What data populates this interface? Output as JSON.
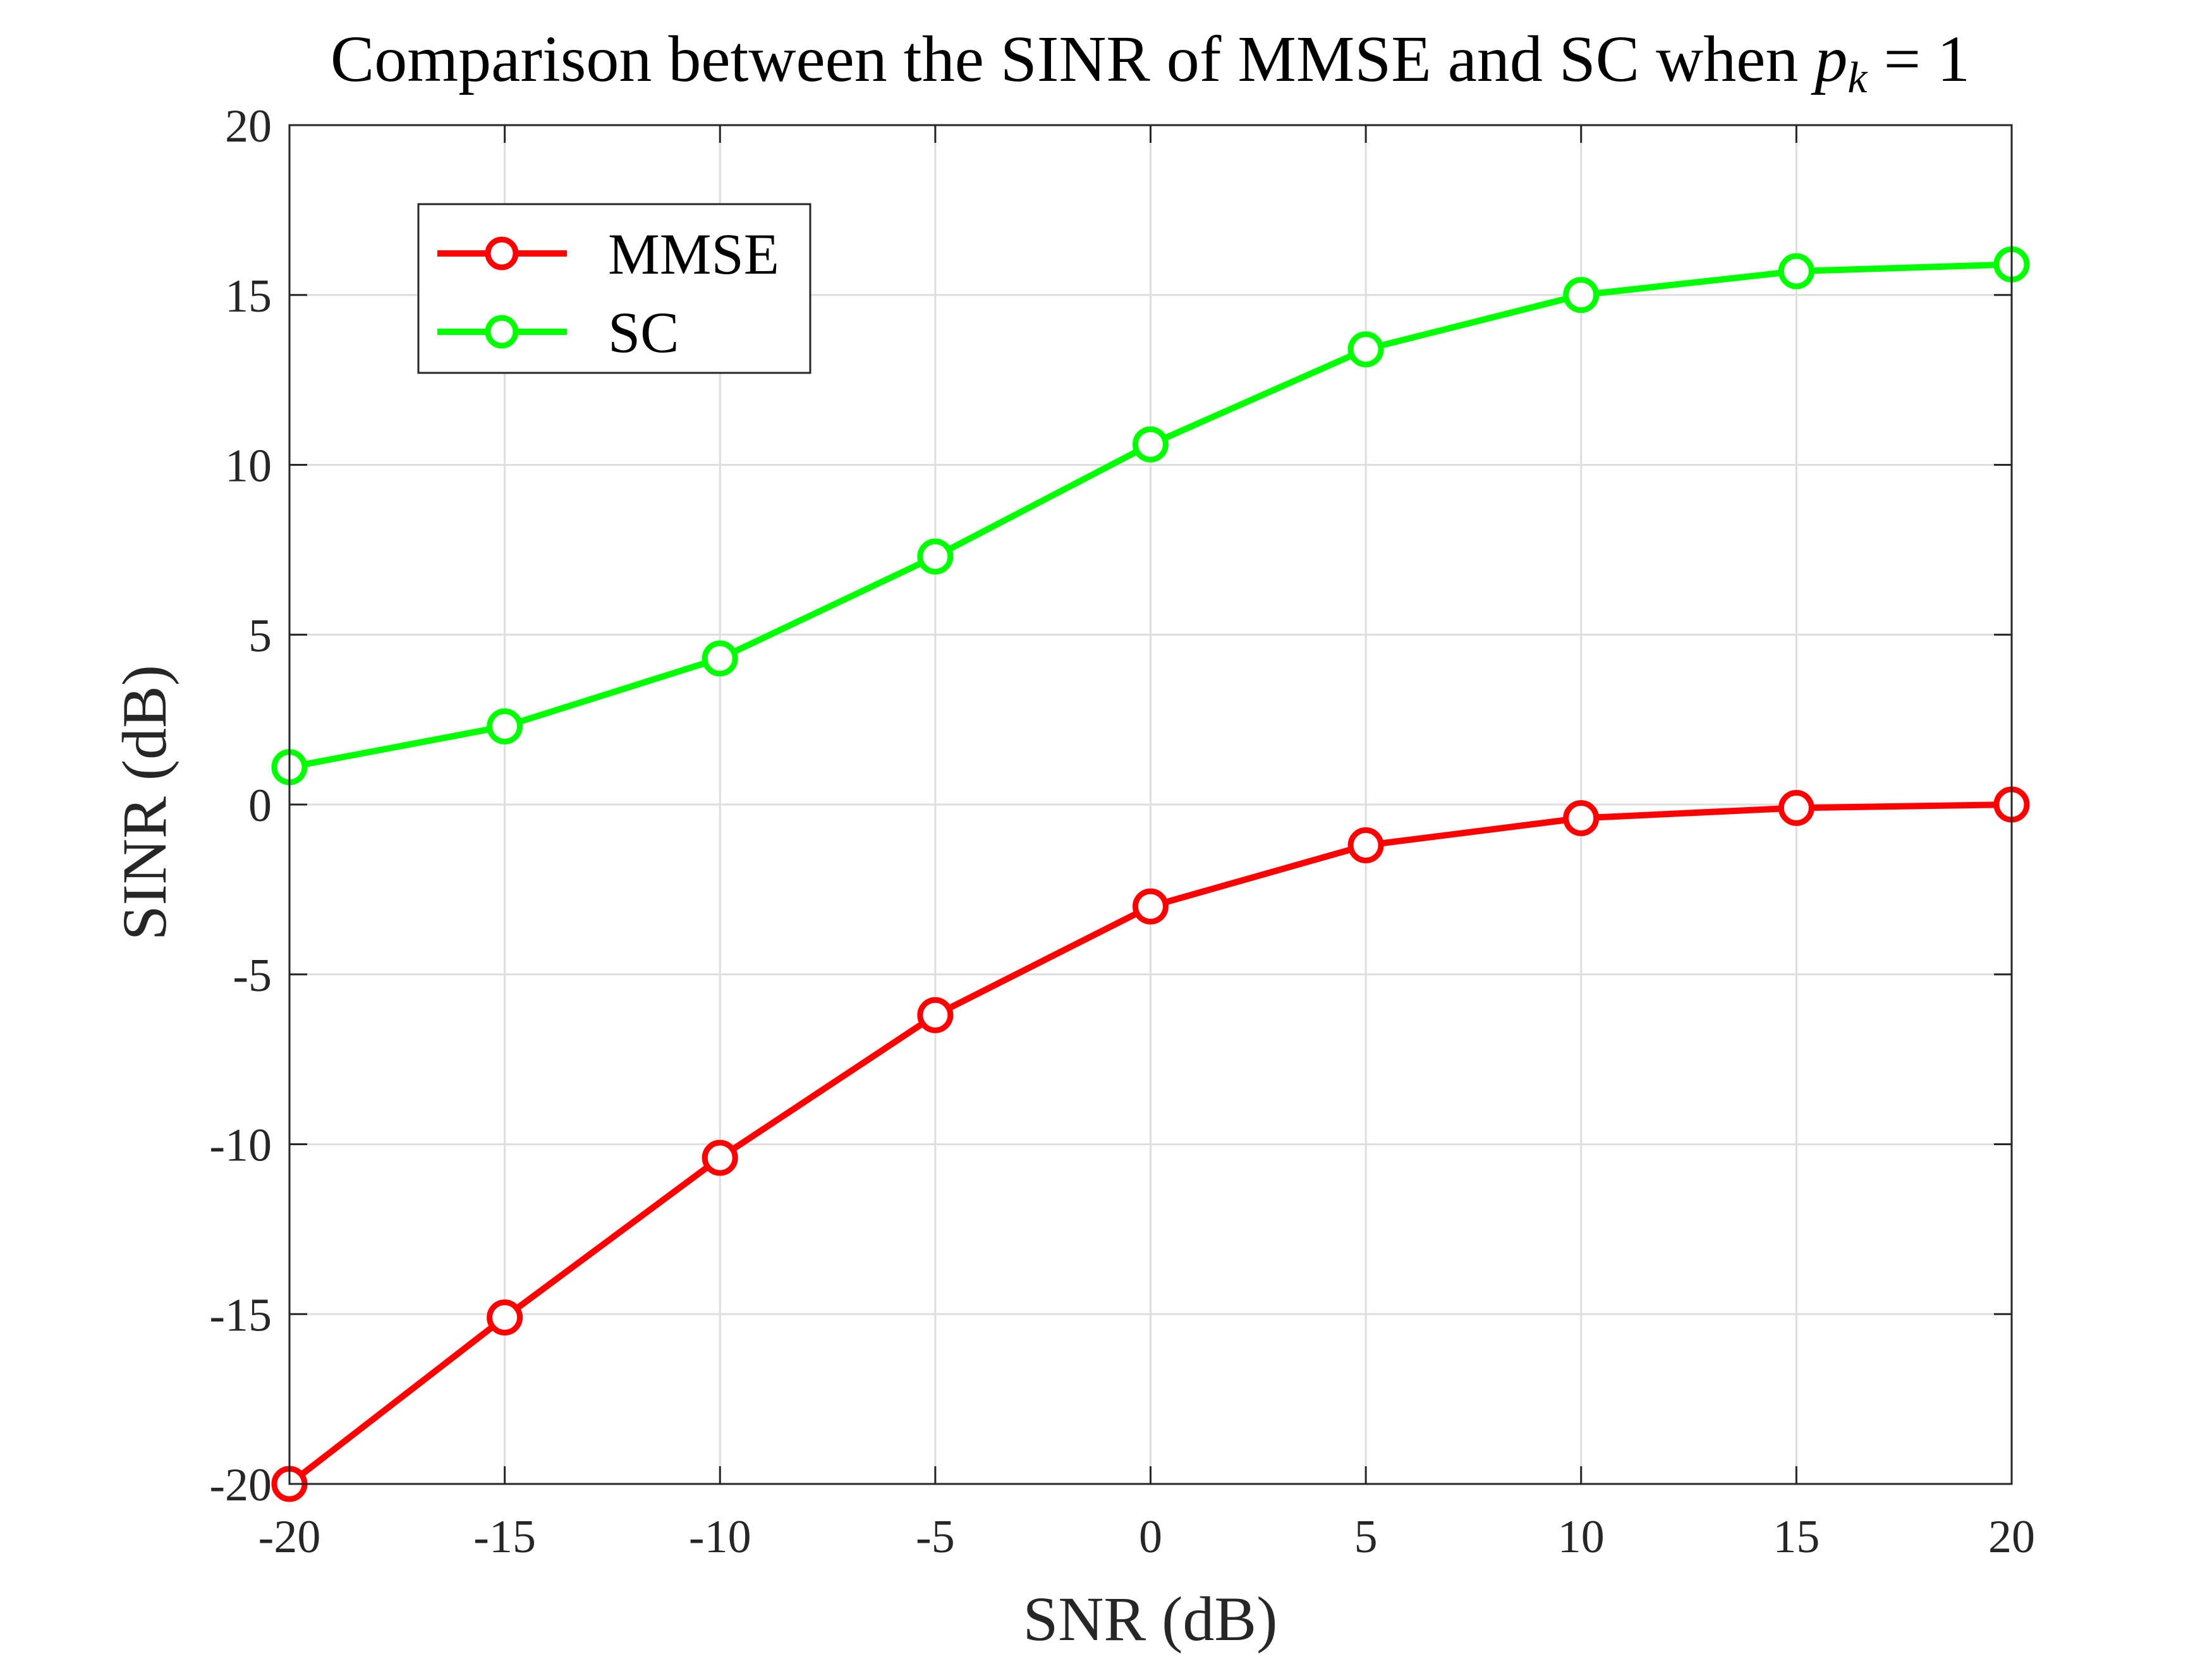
{
  "chart_data": {
    "type": "line",
    "title": "Comparison between the SINR of MMSE and SC when",
    "title_math": {
      "var": "p",
      "sub": "k",
      "eq": " = 1"
    },
    "xlabel": "SNR (dB)",
    "ylabel": "SINR (dB)",
    "xlim": [
      -20,
      20
    ],
    "ylim": [
      -20,
      20
    ],
    "xticks": [
      -20,
      -15,
      -10,
      -5,
      0,
      5,
      10,
      15,
      20
    ],
    "yticks": [
      -20,
      -15,
      -10,
      -5,
      0,
      5,
      10,
      15,
      20
    ],
    "grid": true,
    "legend_position": "top-left",
    "x": [
      -20,
      -15,
      -10,
      -5,
      0,
      5,
      10,
      15,
      20
    ],
    "series": [
      {
        "name": "MMSE",
        "color": "#ff0000",
        "marker": "circle",
        "values": [
          -20.0,
          -15.1,
          -10.4,
          -6.2,
          -3.0,
          -1.2,
          -0.4,
          -0.1,
          0.0
        ]
      },
      {
        "name": "SC",
        "color": "#00ff00",
        "marker": "circle",
        "values": [
          1.1,
          2.3,
          4.3,
          7.3,
          10.6,
          13.4,
          15.0,
          15.7,
          15.9
        ]
      }
    ]
  }
}
